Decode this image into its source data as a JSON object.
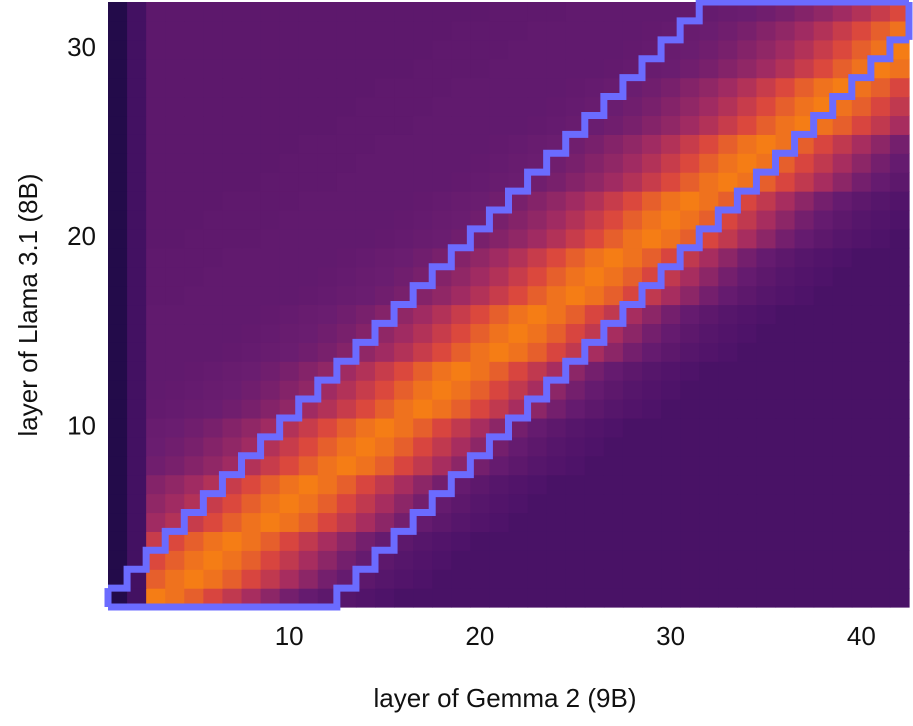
{
  "chart_data": {
    "type": "heatmap",
    "x_label": "layer of Gemma 2 (9B)",
    "y_label": "layer of Llama 3.1 (8B)",
    "x": [
      1,
      2,
      3,
      4,
      5,
      6,
      7,
      8,
      9,
      10,
      11,
      12,
      13,
      14,
      15,
      16,
      17,
      18,
      19,
      20,
      21,
      22,
      23,
      24,
      25,
      26,
      27,
      28,
      29,
      30,
      31,
      32,
      33,
      34,
      35,
      36,
      37,
      38,
      39,
      40,
      41,
      42
    ],
    "y": [
      1,
      2,
      3,
      4,
      5,
      6,
      7,
      8,
      9,
      10,
      11,
      12,
      13,
      14,
      15,
      16,
      17,
      18,
      19,
      20,
      21,
      22,
      23,
      24,
      25,
      26,
      27,
      28,
      29,
      30,
      31,
      32
    ],
    "xlim": [
      0.5,
      42.5
    ],
    "ylim": [
      0.5,
      32.5
    ],
    "xticks": [
      10,
      20,
      30,
      40
    ],
    "yticks": [
      10,
      20,
      30
    ],
    "colorscale": [
      "#230b4a",
      "#4b1268",
      "#6b1d70",
      "#a52c60",
      "#d9453f",
      "#f57d15"
    ],
    "z": [
      [
        14,
        26,
        88,
        85,
        80,
        73,
        66,
        59,
        52,
        46,
        41,
        37,
        34,
        32,
        30,
        28,
        28,
        28,
        28,
        28,
        28,
        28,
        28,
        28,
        28,
        28,
        28,
        28,
        28,
        28,
        28,
        28,
        28,
        28,
        28,
        28,
        28,
        28,
        28,
        28,
        28,
        28
      ],
      [
        14,
        26,
        80,
        85,
        88,
        85,
        80,
        73,
        66,
        59,
        52,
        46,
        41,
        37,
        34,
        32,
        30,
        28,
        28,
        28,
        28,
        28,
        28,
        28,
        28,
        28,
        28,
        28,
        28,
        28,
        28,
        28,
        28,
        28,
        28,
        28,
        28,
        28,
        28,
        28,
        28,
        28
      ],
      [
        14,
        26,
        74,
        80,
        85,
        88,
        85,
        80,
        73,
        66,
        59,
        52,
        46,
        41,
        37,
        34,
        32,
        30,
        28,
        28,
        28,
        28,
        28,
        28,
        28,
        28,
        28,
        28,
        28,
        28,
        28,
        28,
        28,
        28,
        28,
        28,
        28,
        28,
        28,
        28,
        28,
        28
      ],
      [
        14,
        26,
        68,
        74,
        80,
        85,
        88,
        85,
        80,
        73,
        66,
        59,
        52,
        46,
        41,
        37,
        34,
        32,
        30,
        28,
        28,
        28,
        28,
        28,
        28,
        28,
        28,
        28,
        28,
        28,
        28,
        28,
        28,
        28,
        28,
        28,
        28,
        28,
        28,
        28,
        28,
        28
      ],
      [
        14,
        26,
        57,
        62,
        68,
        74,
        80,
        85,
        88,
        85,
        80,
        73,
        66,
        59,
        52,
        46,
        41,
        37,
        34,
        32,
        30,
        28,
        28,
        28,
        28,
        28,
        28,
        28,
        28,
        28,
        28,
        28,
        28,
        28,
        28,
        28,
        28,
        28,
        28,
        28,
        28,
        28
      ],
      [
        14,
        26,
        53,
        57,
        62,
        68,
        74,
        80,
        85,
        88,
        85,
        80,
        73,
        66,
        59,
        52,
        46,
        41,
        37,
        34,
        32,
        30,
        28,
        28,
        28,
        28,
        28,
        28,
        28,
        28,
        28,
        28,
        28,
        28,
        28,
        28,
        28,
        28,
        28,
        28,
        28,
        28
      ],
      [
        14,
        26,
        50,
        53,
        57,
        62,
        68,
        74,
        80,
        85,
        88,
        85,
        80,
        73,
        66,
        59,
        52,
        46,
        41,
        37,
        34,
        32,
        30,
        28,
        28,
        28,
        28,
        28,
        28,
        28,
        28,
        28,
        28,
        28,
        28,
        28,
        28,
        28,
        28,
        28,
        28,
        28
      ],
      [
        14,
        26,
        45,
        47,
        50,
        53,
        57,
        62,
        68,
        74,
        80,
        85,
        88,
        85,
        80,
        73,
        66,
        59,
        52,
        46,
        41,
        37,
        34,
        32,
        30,
        28,
        28,
        28,
        28,
        28,
        28,
        28,
        28,
        28,
        28,
        28,
        28,
        28,
        28,
        28,
        28,
        28
      ],
      [
        14,
        26,
        43,
        45,
        47,
        50,
        53,
        57,
        62,
        68,
        74,
        80,
        85,
        88,
        85,
        80,
        73,
        66,
        59,
        52,
        46,
        41,
        37,
        34,
        32,
        30,
        28,
        28,
        28,
        28,
        28,
        28,
        28,
        28,
        28,
        28,
        28,
        28,
        28,
        28,
        28,
        28
      ],
      [
        14,
        26,
        42,
        43,
        45,
        47,
        50,
        53,
        57,
        62,
        68,
        74,
        80,
        85,
        88,
        85,
        80,
        73,
        66,
        59,
        52,
        46,
        41,
        37,
        34,
        32,
        30,
        28,
        28,
        28,
        28,
        28,
        28,
        28,
        28,
        28,
        28,
        28,
        28,
        28,
        28,
        28
      ],
      [
        14,
        26,
        40,
        41,
        42,
        43,
        45,
        47,
        50,
        53,
        57,
        62,
        68,
        74,
        80,
        85,
        88,
        85,
        80,
        73,
        66,
        59,
        52,
        46,
        41,
        37,
        34,
        32,
        30,
        28,
        28,
        28,
        28,
        28,
        28,
        28,
        28,
        28,
        28,
        28,
        28,
        28
      ],
      [
        14,
        26,
        39,
        40,
        41,
        42,
        43,
        45,
        47,
        50,
        53,
        57,
        62,
        68,
        74,
        80,
        85,
        88,
        85,
        80,
        73,
        66,
        59,
        52,
        46,
        41,
        37,
        34,
        32,
        30,
        28,
        28,
        28,
        28,
        28,
        28,
        28,
        28,
        28,
        28,
        28,
        28
      ],
      [
        14,
        26,
        39,
        39,
        40,
        41,
        42,
        43,
        45,
        47,
        50,
        53,
        57,
        62,
        68,
        74,
        80,
        85,
        88,
        85,
        80,
        73,
        66,
        59,
        52,
        46,
        41,
        37,
        34,
        32,
        30,
        28,
        28,
        28,
        28,
        28,
        28,
        28,
        28,
        28,
        28,
        28
      ],
      [
        14,
        26,
        39,
        39,
        39,
        39,
        40,
        41,
        42,
        43,
        45,
        47,
        50,
        53,
        57,
        62,
        68,
        74,
        80,
        85,
        88,
        85,
        80,
        73,
        66,
        59,
        52,
        46,
        41,
        37,
        34,
        32,
        30,
        28,
        28,
        28,
        28,
        28,
        28,
        28,
        28,
        28
      ],
      [
        14,
        26,
        39,
        39,
        39,
        39,
        39,
        40,
        41,
        42,
        43,
        45,
        47,
        50,
        53,
        57,
        62,
        68,
        74,
        80,
        85,
        88,
        85,
        80,
        73,
        66,
        59,
        52,
        46,
        41,
        37,
        34,
        32,
        30,
        28,
        28,
        28,
        28,
        28,
        28,
        28,
        28
      ],
      [
        14,
        26,
        39,
        39,
        39,
        39,
        39,
        39,
        40,
        41,
        42,
        43,
        45,
        47,
        50,
        53,
        57,
        62,
        68,
        74,
        80,
        85,
        88,
        85,
        80,
        73,
        66,
        59,
        52,
        46,
        41,
        37,
        34,
        32,
        30,
        28,
        28,
        28,
        28,
        28,
        28,
        28
      ],
      [
        14,
        26,
        38,
        38,
        39,
        39,
        39,
        39,
        39,
        39,
        40,
        41,
        42,
        43,
        45,
        47,
        50,
        53,
        57,
        62,
        68,
        74,
        80,
        85,
        88,
        85,
        80,
        73,
        66,
        59,
        52,
        46,
        41,
        37,
        34,
        32,
        30,
        28,
        28,
        28,
        28,
        28
      ],
      [
        14,
        26,
        38,
        38,
        38,
        39,
        39,
        39,
        39,
        39,
        39,
        40,
        41,
        42,
        43,
        45,
        47,
        50,
        53,
        57,
        62,
        68,
        74,
        80,
        85,
        88,
        85,
        80,
        73,
        66,
        59,
        52,
        46,
        41,
        37,
        34,
        32,
        30,
        28,
        28,
        28,
        28
      ],
      [
        14,
        26,
        38,
        38,
        38,
        38,
        39,
        39,
        39,
        39,
        39,
        39,
        40,
        41,
        42,
        43,
        45,
        47,
        50,
        53,
        57,
        62,
        68,
        74,
        80,
        85,
        88,
        85,
        80,
        73,
        66,
        59,
        52,
        46,
        41,
        37,
        34,
        32,
        30,
        28,
        28,
        28
      ],
      [
        14,
        26,
        37,
        37,
        38,
        38,
        38,
        38,
        39,
        39,
        39,
        39,
        39,
        39,
        40,
        41,
        42,
        43,
        45,
        47,
        50,
        53,
        57,
        62,
        68,
        74,
        80,
        85,
        88,
        85,
        80,
        73,
        66,
        59,
        52,
        46,
        41,
        37,
        34,
        32,
        30,
        28
      ],
      [
        14,
        26,
        37,
        37,
        37,
        38,
        38,
        38,
        38,
        39,
        39,
        39,
        39,
        39,
        39,
        40,
        41,
        42,
        43,
        45,
        47,
        50,
        53,
        57,
        62,
        68,
        74,
        80,
        85,
        88,
        85,
        80,
        73,
        66,
        59,
        52,
        46,
        41,
        37,
        34,
        32,
        30
      ],
      [
        14,
        26,
        37,
        37,
        37,
        37,
        38,
        38,
        38,
        38,
        39,
        39,
        39,
        39,
        39,
        39,
        40,
        41,
        42,
        43,
        45,
        47,
        50,
        53,
        57,
        62,
        68,
        74,
        80,
        85,
        88,
        85,
        80,
        73,
        66,
        59,
        52,
        46,
        41,
        37,
        34,
        32
      ],
      [
        14,
        26,
        37,
        37,
        37,
        37,
        37,
        37,
        38,
        38,
        38,
        38,
        39,
        39,
        39,
        39,
        39,
        39,
        40,
        41,
        42,
        43,
        45,
        47,
        50,
        53,
        57,
        62,
        68,
        74,
        80,
        85,
        88,
        85,
        80,
        73,
        66,
        59,
        52,
        46,
        41,
        37
      ],
      [
        14,
        26,
        37,
        37,
        37,
        37,
        37,
        37,
        37,
        38,
        38,
        38,
        38,
        39,
        39,
        39,
        39,
        39,
        39,
        40,
        41,
        42,
        43,
        45,
        47,
        50,
        53,
        57,
        62,
        68,
        74,
        80,
        85,
        88,
        85,
        80,
        73,
        66,
        59,
        52,
        46,
        41
      ],
      [
        14,
        26,
        37,
        37,
        37,
        37,
        37,
        37,
        37,
        37,
        38,
        38,
        38,
        38,
        39,
        39,
        39,
        39,
        39,
        39,
        40,
        41,
        42,
        43,
        45,
        47,
        50,
        53,
        57,
        62,
        68,
        74,
        80,
        85,
        88,
        85,
        80,
        73,
        66,
        59,
        52,
        46
      ],
      [
        14,
        26,
        37,
        37,
        37,
        37,
        37,
        37,
        37,
        37,
        37,
        37,
        38,
        38,
        38,
        38,
        39,
        39,
        39,
        39,
        39,
        39,
        40,
        41,
        42,
        43,
        45,
        47,
        50,
        53,
        57,
        62,
        68,
        74,
        80,
        85,
        88,
        85,
        80,
        73,
        66,
        59
      ],
      [
        14,
        26,
        37,
        37,
        37,
        37,
        37,
        37,
        37,
        37,
        37,
        37,
        37,
        38,
        38,
        38,
        38,
        39,
        39,
        39,
        39,
        39,
        39,
        40,
        41,
        42,
        43,
        45,
        47,
        50,
        53,
        57,
        62,
        68,
        74,
        80,
        85,
        88,
        85,
        80,
        73,
        66
      ],
      [
        14,
        26,
        37,
        37,
        37,
        37,
        37,
        37,
        37,
        37,
        37,
        37,
        37,
        37,
        38,
        38,
        38,
        38,
        39,
        39,
        39,
        39,
        39,
        39,
        40,
        41,
        42,
        43,
        45,
        47,
        50,
        53,
        57,
        62,
        68,
        74,
        80,
        85,
        88,
        85,
        80,
        73
      ],
      [
        14,
        26,
        37,
        37,
        37,
        37,
        37,
        37,
        37,
        37,
        37,
        37,
        37,
        37,
        37,
        37,
        38,
        38,
        38,
        38,
        39,
        39,
        39,
        39,
        39,
        39,
        40,
        41,
        42,
        43,
        45,
        47,
        50,
        53,
        57,
        62,
        68,
        74,
        80,
        85,
        88,
        85
      ],
      [
        14,
        26,
        37,
        37,
        37,
        37,
        37,
        37,
        37,
        37,
        37,
        37,
        37,
        37,
        37,
        37,
        37,
        38,
        38,
        38,
        38,
        39,
        39,
        39,
        39,
        39,
        39,
        40,
        41,
        42,
        43,
        45,
        47,
        50,
        53,
        57,
        62,
        68,
        74,
        80,
        85,
        88
      ],
      [
        14,
        26,
        37,
        37,
        37,
        37,
        37,
        37,
        37,
        37,
        37,
        37,
        37,
        37,
        37,
        37,
        37,
        37,
        38,
        38,
        38,
        38,
        39,
        39,
        39,
        39,
        39,
        39,
        40,
        41,
        42,
        43,
        45,
        47,
        50,
        53,
        57,
        62,
        68,
        74,
        80,
        85
      ],
      [
        14,
        26,
        37,
        37,
        37,
        37,
        37,
        37,
        37,
        37,
        37,
        37,
        37,
        37,
        37,
        37,
        37,
        37,
        37,
        37,
        38,
        38,
        38,
        38,
        39,
        39,
        39,
        39,
        39,
        39,
        40,
        41,
        42,
        43,
        45,
        47,
        50,
        53,
        57,
        62,
        68,
        74
      ]
    ],
    "band": {
      "color": "#6b6bff",
      "upper": [
        1,
        2,
        3,
        4,
        5,
        6,
        7,
        8,
        9,
        10,
        11,
        12,
        13,
        14,
        15,
        16,
        17,
        18,
        19,
        20,
        21,
        22,
        23,
        24,
        25,
        26,
        27,
        28,
        29,
        30,
        31,
        32,
        32,
        32,
        32,
        32,
        32,
        32,
        32,
        32,
        32,
        32
      ],
      "lower": [
        1,
        1,
        1,
        1,
        1,
        1,
        1,
        1,
        1,
        1,
        1,
        1,
        2,
        3,
        4,
        5,
        6,
        7,
        8,
        9,
        10,
        11,
        12,
        13,
        14,
        15,
        16,
        17,
        18,
        19,
        20,
        21,
        22,
        23,
        24,
        25,
        26,
        27,
        28,
        29,
        30,
        31
      ]
    }
  }
}
